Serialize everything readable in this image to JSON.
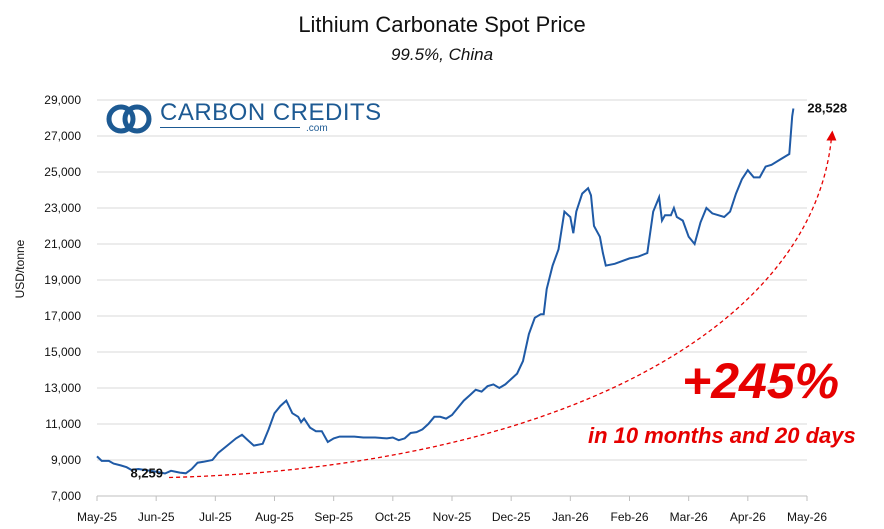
{
  "chart_data": {
    "type": "line",
    "title": "Lithium Carbonate Spot Price",
    "subtitle": "99.5%, China",
    "ylabel": "USD/tonne",
    "xlabel": "",
    "ylim": [
      7000,
      29000
    ],
    "yticks": [
      "7,000",
      "9,000",
      "11,000",
      "13,000",
      "15,000",
      "17,000",
      "19,000",
      "21,000",
      "23,000",
      "25,000",
      "27,000",
      "29,000"
    ],
    "xticks": [
      "May-25",
      "Jun-25",
      "Jul-25",
      "Aug-25",
      "Sep-25",
      "Oct-25",
      "Nov-25",
      "Dec-25",
      "Jan-26",
      "Feb-26",
      "Mar-26",
      "Apr-26",
      "May-26"
    ],
    "grid": "horizontal",
    "line_color": "#1f5aa6",
    "series": [
      {
        "values": [
          [
            0.0,
            9200
          ],
          [
            0.08,
            8950
          ],
          [
            0.2,
            8950
          ],
          [
            0.28,
            8800
          ],
          [
            0.4,
            8700
          ],
          [
            0.5,
            8600
          ],
          [
            0.58,
            8450
          ],
          [
            0.7,
            8500
          ],
          [
            0.8,
            8450
          ],
          [
            1.0,
            8350
          ],
          [
            1.15,
            8250
          ],
          [
            1.25,
            8400
          ],
          [
            1.4,
            8300
          ],
          [
            1.5,
            8259
          ],
          [
            1.6,
            8500
          ],
          [
            1.7,
            8850
          ],
          [
            1.8,
            8900
          ],
          [
            1.95,
            9000
          ],
          [
            2.05,
            9400
          ],
          [
            2.2,
            9800
          ],
          [
            2.35,
            10200
          ],
          [
            2.45,
            10400
          ],
          [
            2.55,
            10100
          ],
          [
            2.65,
            9800
          ],
          [
            2.8,
            9900
          ],
          [
            2.9,
            10700
          ],
          [
            3.0,
            11600
          ],
          [
            3.1,
            12000
          ],
          [
            3.2,
            12300
          ],
          [
            3.3,
            11600
          ],
          [
            3.4,
            11400
          ],
          [
            3.45,
            11100
          ],
          [
            3.5,
            11300
          ],
          [
            3.6,
            10800
          ],
          [
            3.7,
            10600
          ],
          [
            3.8,
            10600
          ],
          [
            3.9,
            10000
          ],
          [
            4.0,
            10200
          ],
          [
            4.1,
            10300
          ],
          [
            4.2,
            10300
          ],
          [
            4.35,
            10300
          ],
          [
            4.5,
            10250
          ],
          [
            4.7,
            10250
          ],
          [
            4.9,
            10200
          ],
          [
            5.0,
            10250
          ],
          [
            5.1,
            10100
          ],
          [
            5.2,
            10200
          ],
          [
            5.3,
            10500
          ],
          [
            5.4,
            10550
          ],
          [
            5.5,
            10700
          ],
          [
            5.6,
            11000
          ],
          [
            5.7,
            11400
          ],
          [
            5.8,
            11400
          ],
          [
            5.9,
            11300
          ],
          [
            6.0,
            11500
          ],
          [
            6.1,
            11900
          ],
          [
            6.2,
            12300
          ],
          [
            6.3,
            12600
          ],
          [
            6.4,
            12900
          ],
          [
            6.5,
            12800
          ],
          [
            6.6,
            13100
          ],
          [
            6.7,
            13200
          ],
          [
            6.8,
            13000
          ],
          [
            6.9,
            13200
          ],
          [
            7.0,
            13500
          ],
          [
            7.1,
            13800
          ],
          [
            7.2,
            14500
          ],
          [
            7.3,
            16000
          ],
          [
            7.4,
            16900
          ],
          [
            7.5,
            17100
          ],
          [
            7.55,
            17100
          ],
          [
            7.6,
            18500
          ],
          [
            7.7,
            19800
          ],
          [
            7.8,
            20700
          ],
          [
            7.9,
            22800
          ],
          [
            8.0,
            22500
          ],
          [
            8.05,
            21600
          ],
          [
            8.1,
            22800
          ],
          [
            8.2,
            23800
          ],
          [
            8.3,
            24100
          ],
          [
            8.35,
            23700
          ],
          [
            8.4,
            22000
          ],
          [
            8.5,
            21400
          ],
          [
            8.55,
            20500
          ],
          [
            8.6,
            19800
          ],
          [
            8.75,
            19900
          ],
          [
            9.0,
            20200
          ],
          [
            9.15,
            20300
          ],
          [
            9.3,
            20500
          ],
          [
            9.4,
            22800
          ],
          [
            9.5,
            23600
          ],
          [
            9.55,
            22300
          ],
          [
            9.6,
            22600
          ],
          [
            9.7,
            22600
          ],
          [
            9.75,
            23000
          ],
          [
            9.8,
            22500
          ],
          [
            9.9,
            22300
          ],
          [
            10.0,
            21400
          ],
          [
            10.1,
            21000
          ],
          [
            10.2,
            22200
          ],
          [
            10.3,
            23000
          ],
          [
            10.4,
            22700
          ],
          [
            10.5,
            22600
          ],
          [
            10.6,
            22500
          ],
          [
            10.7,
            22800
          ],
          [
            10.8,
            23800
          ],
          [
            10.9,
            24600
          ],
          [
            11.0,
            25100
          ],
          [
            11.1,
            24700
          ],
          [
            11.2,
            24700
          ],
          [
            11.3,
            25300
          ],
          [
            11.4,
            25400
          ],
          [
            11.55,
            25700
          ],
          [
            11.7,
            26000
          ],
          [
            11.75,
            28100
          ],
          [
            11.77,
            28528
          ]
        ]
      }
    ],
    "annotations": {
      "start_label": "8,259",
      "end_label": "28,528",
      "change": "+245%",
      "period": "in 10 months and 20 days",
      "arrow_color": "#e60000"
    }
  },
  "logo": {
    "text": "CARBON CREDITS",
    "sub": ".com",
    "color": "#1d5a93"
  }
}
